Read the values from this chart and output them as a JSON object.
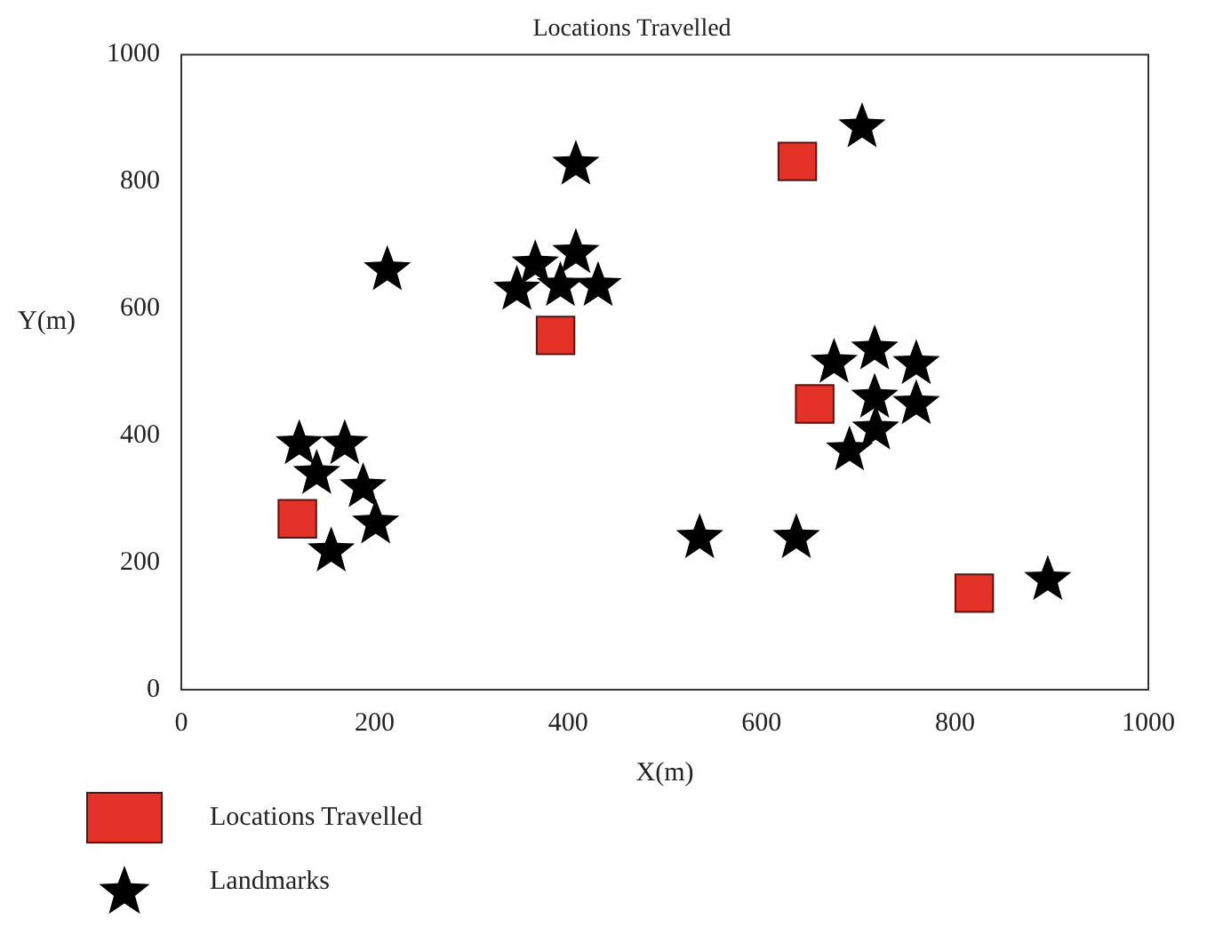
{
  "chart_data": {
    "type": "scatter",
    "title": "Locations Travelled",
    "xlabel": "X(m)",
    "ylabel": "Y(m)",
    "xlim": [
      0,
      1000
    ],
    "xticks": [
      0,
      200,
      400,
      600,
      800,
      1000
    ],
    "ylim": [
      0,
      1000
    ],
    "yticks": [
      0,
      200,
      400,
      600,
      800,
      1000
    ],
    "grid": false,
    "legend": "bottom left",
    "series": [
      {
        "name": "Locations Travelled",
        "color": "#e53228",
        "marker": "square",
        "x": [
          120,
          387,
          637,
          655,
          820
        ],
        "values": [
          269,
          558,
          832,
          450,
          152
        ]
      },
      {
        "name": "Landmarks",
        "color": "#000000",
        "marker": "star",
        "x": [
          704,
          408,
          213,
          366,
          408,
          347,
          392,
          431,
          675,
          717,
          760,
          717,
          760,
          718,
          691,
          122,
          169,
          140,
          188,
          201,
          155,
          536,
          636,
          896
        ],
        "values": [
          886,
          827,
          661,
          670,
          688,
          630,
          636,
          636,
          515,
          536,
          513,
          460,
          450,
          410,
          377,
          387,
          387,
          340,
          319,
          262,
          218,
          239,
          239,
          173
        ]
      }
    ]
  }
}
